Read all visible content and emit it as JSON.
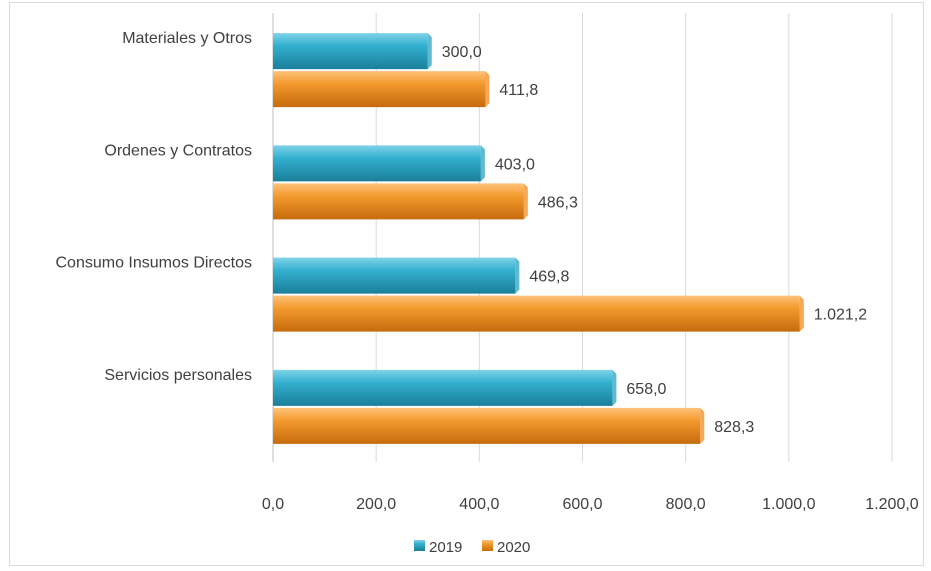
{
  "chart_data": {
    "type": "bar",
    "orientation": "horizontal",
    "categories": [
      "Materiales y Otros",
      "Ordenes y Contratos ",
      "Consumo Insumos Directos ",
      "Servicios personales"
    ],
    "series": [
      {
        "name": "2019",
        "values": [
          300.0,
          403.0,
          469.8,
          658.0
        ],
        "labels": [
          "300,0",
          "403,0",
          "469,8",
          "658,0"
        ],
        "color": "#2AA3C2"
      },
      {
        "name": "2020",
        "values": [
          411.8,
          486.3,
          1021.2,
          828.3
        ],
        "labels": [
          "411,8",
          "486,3",
          "1.021,2",
          "828,3"
        ],
        "color": "#F28C1E"
      }
    ],
    "xlim": [
      0,
      1200
    ],
    "x_ticks": [
      0,
      200,
      400,
      600,
      800,
      1000,
      1200
    ],
    "x_tick_labels": [
      "0,0",
      "200,0",
      "400,0",
      "600,0",
      "800,0",
      "1.000,0",
      "1.200,0"
    ],
    "grid": true,
    "legend": "bottom",
    "title": "",
    "xlabel": "",
    "ylabel": ""
  }
}
